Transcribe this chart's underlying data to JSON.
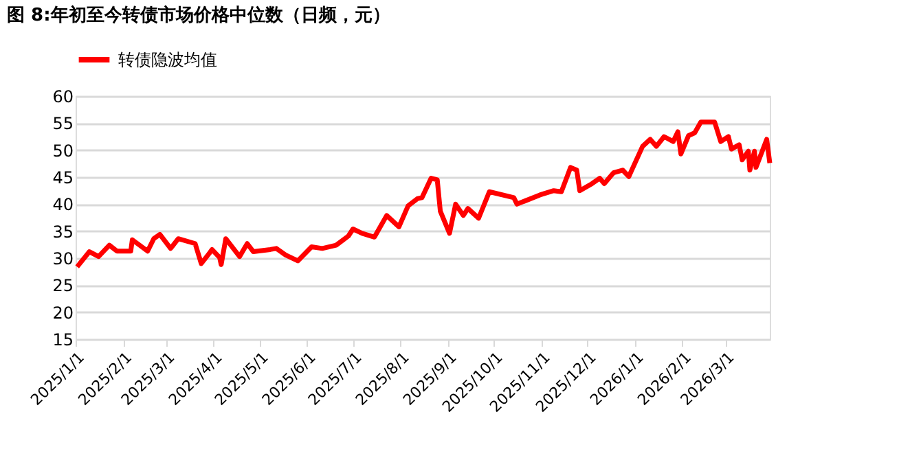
{
  "chart_data": {
    "type": "line",
    "title": "图 8:年初至今转债市场价格中位数（日频，元）",
    "x": [
      "2025-01-02",
      "2025-01-10",
      "2025-01-16",
      "2025-01-23",
      "2025-01-28",
      "2025-02-06",
      "2025-02-07",
      "2025-02-17",
      "2025-02-21",
      "2025-02-25",
      "2025-03-04",
      "2025-03-09",
      "2025-03-20",
      "2025-03-24",
      "2025-03-29",
      "2025-03-31",
      "2025-04-05",
      "2025-04-06",
      "2025-04-09",
      "2025-04-18",
      "2025-04-23",
      "2025-04-27",
      "2025-05-08",
      "2025-05-12",
      "2025-05-18",
      "2025-05-26",
      "2025-06-04",
      "2025-06-11",
      "2025-06-20",
      "2025-06-28",
      "2025-07-01",
      "2025-07-07",
      "2025-07-15",
      "2025-07-23",
      "2025-07-31",
      "2025-08-06",
      "2025-08-12",
      "2025-08-15",
      "2025-08-21",
      "2025-08-25",
      "2025-08-27",
      "2025-09-02",
      "2025-09-06",
      "2025-09-11",
      "2025-09-14",
      "2025-09-21",
      "2025-09-28",
      "2025-10-14",
      "2025-10-16",
      "2025-10-31",
      "2025-11-09",
      "2025-11-14",
      "2025-11-20",
      "2025-11-24",
      "2025-11-26",
      "2025-12-04",
      "2025-12-09",
      "2025-12-12",
      "2025-12-18",
      "2025-12-24",
      "2025-12-28",
      "2026-01-06",
      "2026-01-11",
      "2026-01-15",
      "2026-01-20",
      "2026-01-26",
      "2026-01-29",
      "2026-01-31",
      "2026-02-05",
      "2026-02-09",
      "2026-02-13",
      "2026-02-22",
      "2026-02-26",
      "2026-03-03",
      "2026-03-05",
      "2026-03-10",
      "2026-03-12",
      "2026-03-16",
      "2026-03-17",
      "2026-03-20",
      "2026-03-21",
      "2026-03-28",
      "2026-03-30"
    ],
    "series": [
      {
        "name": "转债隐波均值",
        "color": "#ff0000",
        "values": [
          28.4,
          31.2,
          30.3,
          32.4,
          31.3,
          31.3,
          33.4,
          31.3,
          33.6,
          34.4,
          31.8,
          33.6,
          32.7,
          29.0,
          30.8,
          31.6,
          30.1,
          28.8,
          33.6,
          30.3,
          32.7,
          31.2,
          31.6,
          31.8,
          30.6,
          29.5,
          32.1,
          31.8,
          32.4,
          34.1,
          35.4,
          34.6,
          33.9,
          37.9,
          35.8,
          39.7,
          41.0,
          41.2,
          44.8,
          44.5,
          38.7,
          34.6,
          40.0,
          37.9,
          39.2,
          37.4,
          42.3,
          41.2,
          40.0,
          41.7,
          42.5,
          42.3,
          46.8,
          46.3,
          42.5,
          43.8,
          44.8,
          43.8,
          45.8,
          46.3,
          45.1,
          50.7,
          52.0,
          50.7,
          52.5,
          51.6,
          53.4,
          49.3,
          52.7,
          53.2,
          55.2,
          55.2,
          51.6,
          52.5,
          50.2,
          51.0,
          48.2,
          49.8,
          46.3,
          49.8,
          46.8,
          52.0,
          47.6
        ]
      }
    ],
    "xlim": [
      "2025-01-01",
      "2026-03-30"
    ],
    "xticks": [
      {
        "value": "2025-01-01",
        "label": "2025/1/1"
      },
      {
        "value": "2025-02-01",
        "label": "2025/2/1"
      },
      {
        "value": "2025-03-01",
        "label": "2025/3/1"
      },
      {
        "value": "2025-04-01",
        "label": "2025/4/1"
      },
      {
        "value": "2025-05-01",
        "label": "2025/5/1"
      },
      {
        "value": "2025-06-01",
        "label": "2025/6/1"
      },
      {
        "value": "2025-07-01",
        "label": "2025/7/1"
      },
      {
        "value": "2025-08-01",
        "label": "2025/8/1"
      },
      {
        "value": "2025-09-01",
        "label": "2025/9/1"
      },
      {
        "value": "2025-10-01",
        "label": "2025/10/1"
      },
      {
        "value": "2025-11-01",
        "label": "2025/11/1"
      },
      {
        "value": "2025-12-01",
        "label": "2025/12/1"
      },
      {
        "value": "2026-01-01",
        "label": "2026/1/1"
      },
      {
        "value": "2026-02-01",
        "label": "2026/2/1"
      },
      {
        "value": "2026-03-01",
        "label": "2026/3/1"
      }
    ],
    "ylim": [
      15,
      60
    ],
    "yticks": [
      15,
      20,
      25,
      30,
      35,
      40,
      45,
      50,
      55,
      60
    ],
    "grid": "y",
    "legend": "top",
    "marker": "none",
    "line_style": "solid"
  }
}
